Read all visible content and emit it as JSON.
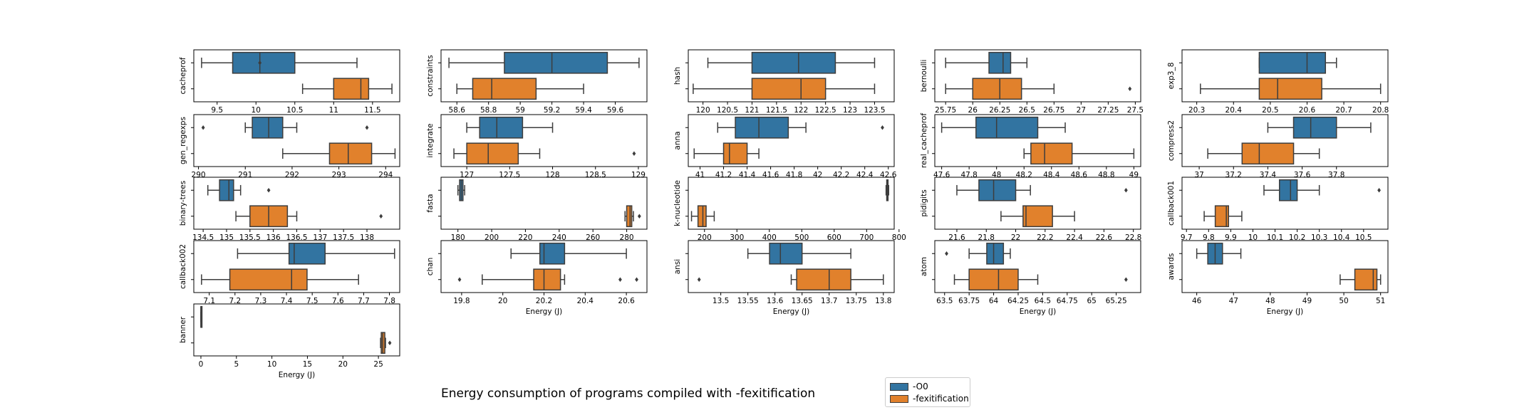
{
  "figure": {
    "title": "Energy consumption of programs compiled with -fexitification",
    "xlabel": "Energy (J)"
  },
  "legend": {
    "position": "bottom-center",
    "items": [
      {
        "label": "-O0",
        "color": "#3274a1"
      },
      {
        "label": "-fexitification",
        "color": "#e1812c"
      }
    ]
  },
  "colors": {
    "o0": "#3274a1",
    "fexit": "#e1812c",
    "whisker": "#3d3d3d"
  },
  "chart_data": [
    {
      "type": "box",
      "ylabel": "cacheprof",
      "xlim": [
        9.2,
        11.85
      ],
      "ticks": [
        9.5,
        10.0,
        10.5,
        11.0,
        11.5
      ],
      "series": [
        {
          "name": "-O0",
          "whislo": 9.3,
          "q1": 9.7,
          "med": 10.05,
          "q3": 10.5,
          "whishi": 11.3,
          "fliers": [
            10.05
          ]
        },
        {
          "name": "-fexitification",
          "whislo": 10.6,
          "q1": 11.0,
          "med": 11.35,
          "q3": 11.45,
          "whishi": 11.75,
          "fliers": []
        }
      ]
    },
    {
      "type": "box",
      "ylabel": "constraints",
      "xlim": [
        58.5,
        59.8
      ],
      "ticks": [
        58.6,
        58.8,
        59.0,
        59.2,
        59.4,
        59.6
      ],
      "series": [
        {
          "name": "-O0",
          "whislo": 58.55,
          "q1": 58.9,
          "med": 59.2,
          "q3": 59.55,
          "whishi": 59.75,
          "fliers": []
        },
        {
          "name": "-fexitification",
          "whislo": 58.6,
          "q1": 58.7,
          "med": 58.82,
          "q3": 59.1,
          "whishi": 59.4,
          "fliers": []
        }
      ]
    },
    {
      "type": "box",
      "ylabel": "hash",
      "xlim": [
        119.7,
        123.9
      ],
      "ticks": [
        120.0,
        120.5,
        121.0,
        121.5,
        122.0,
        122.5,
        123.0,
        123.5
      ],
      "series": [
        {
          "name": "-O0",
          "whislo": 120.1,
          "q1": 121.0,
          "med": 121.95,
          "q3": 122.7,
          "whishi": 123.5,
          "fliers": []
        },
        {
          "name": "-fexitification",
          "whislo": 119.8,
          "q1": 121.0,
          "med": 122.0,
          "q3": 122.5,
          "whishi": 123.5,
          "fliers": []
        }
      ]
    },
    {
      "type": "box",
      "ylabel": "bernoulli",
      "xlim": [
        25.65,
        27.55
      ],
      "ticks": [
        25.75,
        26.0,
        26.25,
        26.5,
        26.75,
        27.0,
        27.25,
        27.5
      ],
      "series": [
        {
          "name": "-O0",
          "whislo": 25.75,
          "q1": 26.15,
          "med": 26.28,
          "q3": 26.35,
          "whishi": 26.5,
          "fliers": []
        },
        {
          "name": "-fexitification",
          "whislo": 25.75,
          "q1": 26.0,
          "med": 26.25,
          "q3": 26.45,
          "whishi": 26.75,
          "fliers": [
            27.45
          ]
        }
      ]
    },
    {
      "type": "box",
      "ylabel": "exp3_8",
      "xlim": [
        20.26,
        20.82
      ],
      "ticks": [
        20.3,
        20.4,
        20.5,
        20.6,
        20.7,
        20.8
      ],
      "series": [
        {
          "name": "-O0",
          "whislo": 20.47,
          "q1": 20.47,
          "med": 20.6,
          "q3": 20.65,
          "whishi": 20.68,
          "fliers": []
        },
        {
          "name": "-fexitification",
          "whislo": 20.31,
          "q1": 20.47,
          "med": 20.52,
          "q3": 20.64,
          "whishi": 20.8,
          "fliers": []
        }
      ]
    },
    {
      "type": "box",
      "ylabel": "gen_regexps",
      "xlim": [
        289.9,
        294.3
      ],
      "ticks": [
        290,
        291,
        292,
        293,
        294
      ],
      "series": [
        {
          "name": "-O0",
          "whislo": 291.0,
          "q1": 291.15,
          "med": 291.5,
          "q3": 291.8,
          "whishi": 292.1,
          "fliers": [
            290.1,
            293.6
          ]
        },
        {
          "name": "-fexitification",
          "whislo": 291.8,
          "q1": 292.8,
          "med": 293.2,
          "q3": 293.7,
          "whishi": 294.2,
          "fliers": []
        }
      ]
    },
    {
      "type": "box",
      "ylabel": "integrate",
      "xlim": [
        126.7,
        129.1
      ],
      "ticks": [
        127.0,
        127.5,
        128.0,
        128.5,
        129.0
      ],
      "series": [
        {
          "name": "-O0",
          "whislo": 127.0,
          "q1": 127.15,
          "med": 127.35,
          "q3": 127.65,
          "whishi": 128.0,
          "fliers": []
        },
        {
          "name": "-fexitification",
          "whislo": 126.85,
          "q1": 127.0,
          "med": 127.25,
          "q3": 127.6,
          "whishi": 127.85,
          "fliers": [
            128.95
          ]
        }
      ]
    },
    {
      "type": "box",
      "ylabel": "anna",
      "xlim": [
        40.9,
        42.65
      ],
      "ticks": [
        41.0,
        41.2,
        41.4,
        41.6,
        41.8,
        42.0,
        42.2,
        42.4,
        42.6
      ],
      "series": [
        {
          "name": "-O0",
          "whislo": 41.15,
          "q1": 41.3,
          "med": 41.5,
          "q3": 41.75,
          "whishi": 41.9,
          "fliers": [
            42.55
          ]
        },
        {
          "name": "-fexitification",
          "whislo": 40.95,
          "q1": 41.2,
          "med": 41.25,
          "q3": 41.4,
          "whishi": 41.5,
          "fliers": []
        }
      ]
    },
    {
      "type": "box",
      "ylabel": "real_cacheprof",
      "xlim": [
        47.55,
        49.05
      ],
      "ticks": [
        47.6,
        47.8,
        48.0,
        48.2,
        48.4,
        48.6,
        48.8,
        49.0
      ],
      "series": [
        {
          "name": "-O0",
          "whislo": 47.6,
          "q1": 47.85,
          "med": 48.0,
          "q3": 48.3,
          "whishi": 48.5,
          "fliers": []
        },
        {
          "name": "-fexitification",
          "whislo": 48.2,
          "q1": 48.25,
          "med": 48.35,
          "q3": 48.55,
          "whishi": 49.0,
          "fliers": []
        }
      ]
    },
    {
      "type": "box",
      "ylabel": "compress2",
      "xlim": [
        36.9,
        38.1
      ],
      "ticks": [
        37.0,
        37.2,
        37.4,
        37.6,
        37.8
      ],
      "series": [
        {
          "name": "-O0",
          "whislo": 37.4,
          "q1": 37.55,
          "med": 37.65,
          "q3": 37.8,
          "whishi": 38.0,
          "fliers": []
        },
        {
          "name": "-fexitification",
          "whislo": 37.05,
          "q1": 37.25,
          "med": 37.35,
          "q3": 37.55,
          "whishi": 37.7,
          "fliers": []
        }
      ]
    },
    {
      "type": "box",
      "ylabel": "binary-trees",
      "xlim": [
        134.3,
        138.7
      ],
      "ticks": [
        134.5,
        135.0,
        135.5,
        136.0,
        136.5,
        137.0,
        137.5,
        138.0
      ],
      "series": [
        {
          "name": "-O0",
          "whislo": 134.6,
          "q1": 134.85,
          "med": 135.05,
          "q3": 135.15,
          "whishi": 135.3,
          "fliers": [
            135.9
          ]
        },
        {
          "name": "-fexitification",
          "whislo": 135.2,
          "q1": 135.5,
          "med": 135.9,
          "q3": 136.3,
          "whishi": 136.5,
          "fliers": [
            138.3
          ]
        }
      ]
    },
    {
      "type": "box",
      "ylabel": "fasta",
      "xlim": [
        170,
        292
      ],
      "ticks": [
        180,
        200,
        220,
        240,
        260,
        280
      ],
      "series": [
        {
          "name": "-O0",
          "whislo": 180.0,
          "q1": 181.0,
          "med": 182.0,
          "q3": 183.0,
          "whishi": 184.0,
          "fliers": []
        },
        {
          "name": "-fexitification",
          "whislo": 279.0,
          "q1": 280.0,
          "med": 282.0,
          "q3": 283.0,
          "whishi": 284.0,
          "fliers": [
            287.5
          ]
        }
      ]
    },
    {
      "type": "box",
      "ylabel": "k-nucleotide",
      "xlim": [
        150,
        785
      ],
      "ticks": [
        200,
        300,
        400,
        500,
        600,
        700,
        800
      ],
      "series": [
        {
          "name": "-O0",
          "whislo": 760.0,
          "q1": 762.0,
          "med": 764.0,
          "q3": 766.0,
          "whishi": 768.0,
          "fliers": []
        },
        {
          "name": "-fexitification",
          "whislo": 160.0,
          "q1": 180.0,
          "med": 195.0,
          "q3": 205.0,
          "whishi": 230.0,
          "fliers": []
        }
      ]
    },
    {
      "type": "box",
      "ylabel": "pidigits",
      "xlim": [
        21.45,
        22.85
      ],
      "ticks": [
        21.6,
        21.8,
        22.0,
        22.2,
        22.4,
        22.6,
        22.8
      ],
      "series": [
        {
          "name": "-O0",
          "whislo": 21.6,
          "q1": 21.75,
          "med": 21.85,
          "q3": 22.0,
          "whishi": 22.1,
          "fliers": [
            22.75
          ]
        },
        {
          "name": "-fexitification",
          "whislo": 21.9,
          "q1": 22.05,
          "med": 22.07,
          "q3": 22.25,
          "whishi": 22.4,
          "fliers": []
        }
      ]
    },
    {
      "type": "box",
      "ylabel": "callback001",
      "xlim": [
        9.68,
        10.61
      ],
      "ticks": [
        9.7,
        9.8,
        9.9,
        10.0,
        10.1,
        10.2,
        10.3,
        10.4,
        10.5
      ],
      "series": [
        {
          "name": "-O0",
          "whislo": 10.05,
          "q1": 10.12,
          "med": 10.17,
          "q3": 10.2,
          "whishi": 10.3,
          "fliers": [
            10.57
          ]
        },
        {
          "name": "-fexitification",
          "whislo": 9.78,
          "q1": 9.83,
          "med": 9.88,
          "q3": 9.89,
          "whishi": 9.95,
          "fliers": []
        }
      ]
    },
    {
      "type": "box",
      "ylabel": "callback002",
      "xlim": [
        7.04,
        7.84
      ],
      "ticks": [
        7.1,
        7.2,
        7.3,
        7.4,
        7.5,
        7.6,
        7.7,
        7.8
      ],
      "series": [
        {
          "name": "-O0",
          "whislo": 7.21,
          "q1": 7.41,
          "med": 7.43,
          "q3": 7.55,
          "whishi": 7.82,
          "fliers": []
        },
        {
          "name": "-fexitification",
          "whislo": 7.07,
          "q1": 7.18,
          "med": 7.42,
          "q3": 7.48,
          "whishi": 7.68,
          "fliers": []
        }
      ]
    },
    {
      "type": "box",
      "ylabel": "chan",
      "xlim": [
        19.7,
        20.7
      ],
      "ticks": [
        19.8,
        20.0,
        20.2,
        20.4,
        20.6
      ],
      "xlabel_shown": true,
      "series": [
        {
          "name": "-O0",
          "whislo": 20.04,
          "q1": 20.18,
          "med": 20.2,
          "q3": 20.3,
          "whishi": 20.6,
          "fliers": []
        },
        {
          "name": "-fexitification",
          "whislo": 19.9,
          "q1": 20.15,
          "med": 20.2,
          "q3": 20.28,
          "whishi": 20.3,
          "fliers": [
            19.79,
            20.57,
            20.65
          ]
        }
      ]
    },
    {
      "type": "box",
      "ylabel": "ansi",
      "xlim": [
        13.44,
        13.82
      ],
      "ticks": [
        13.5,
        13.55,
        13.6,
        13.65,
        13.7,
        13.75,
        13.8
      ],
      "xlabel_shown": true,
      "series": [
        {
          "name": "-O0",
          "whislo": 13.55,
          "q1": 13.59,
          "med": 13.61,
          "q3": 13.65,
          "whishi": 13.74,
          "fliers": []
        },
        {
          "name": "-fexitification",
          "whislo": 13.63,
          "q1": 13.64,
          "med": 13.7,
          "q3": 13.74,
          "whishi": 13.8,
          "fliers": [
            13.46
          ]
        }
      ]
    },
    {
      "type": "box",
      "ylabel": "atom",
      "xlim": [
        63.4,
        65.5
      ],
      "ticks": [
        63.5,
        63.75,
        64.0,
        64.25,
        64.5,
        64.75,
        65.0,
        65.25
      ],
      "xlabel_shown": true,
      "series": [
        {
          "name": "-O0",
          "whislo": 63.75,
          "q1": 63.93,
          "med": 64.0,
          "q3": 64.1,
          "whishi": 64.17,
          "fliers": [
            63.52
          ]
        },
        {
          "name": "-fexitification",
          "whislo": 63.6,
          "q1": 63.75,
          "med": 64.05,
          "q3": 64.25,
          "whishi": 64.45,
          "fliers": [
            65.35
          ]
        }
      ]
    },
    {
      "type": "box",
      "ylabel": "awards",
      "xlim": [
        45.6,
        51.2
      ],
      "ticks": [
        46,
        47,
        48,
        49,
        50,
        51
      ],
      "xlabel_shown": true,
      "series": [
        {
          "name": "-O0",
          "whislo": 46.0,
          "q1": 46.3,
          "med": 46.5,
          "q3": 46.7,
          "whishi": 47.2,
          "fliers": []
        },
        {
          "name": "-fexitification",
          "whislo": 49.9,
          "q1": 50.3,
          "med": 50.8,
          "q3": 50.9,
          "whishi": 51.0,
          "fliers": []
        }
      ]
    },
    {
      "type": "box",
      "ylabel": "banner",
      "xlim": [
        -1.0,
        28.0
      ],
      "ticks": [
        0,
        5,
        10,
        15,
        20,
        25
      ],
      "xlabel_shown": true,
      "series": [
        {
          "name": "-O0",
          "whislo": 0.0,
          "q1": 0.0,
          "med": 0.0,
          "q3": 0.05,
          "whishi": 0.1,
          "fliers": []
        },
        {
          "name": "-fexitification",
          "whislo": 25.3,
          "q1": 25.4,
          "med": 25.6,
          "q3": 25.9,
          "whishi": 26.0,
          "fliers": [
            26.6
          ]
        }
      ]
    }
  ]
}
